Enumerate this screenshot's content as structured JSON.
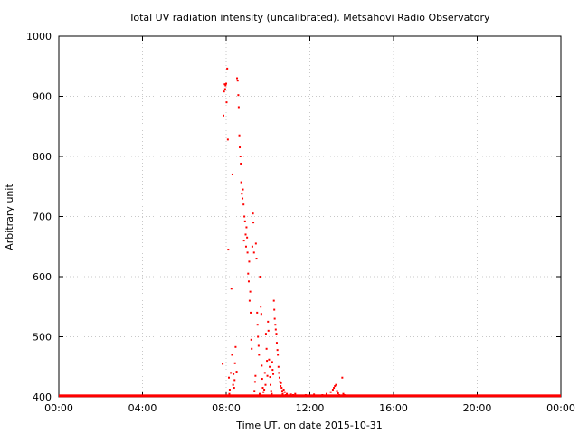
{
  "chart_data": {
    "type": "scatter",
    "title": "Total UV radiation intensity (uncalibrated). Metsähovi Radio Observatory",
    "xlabel": "Time UT, on date 2015-10-31",
    "ylabel": "Arbitrary unit",
    "xlim": [
      0,
      24
    ],
    "ylim": [
      400,
      1000
    ],
    "x_ticks": [
      {
        "value": 0,
        "label": "00:00"
      },
      {
        "value": 4,
        "label": "04:00"
      },
      {
        "value": 8,
        "label": "08:00"
      },
      {
        "value": 12,
        "label": "12:00"
      },
      {
        "value": 16,
        "label": "16:00"
      },
      {
        "value": 20,
        "label": "20:00"
      },
      {
        "value": 24,
        "label": "00:00"
      }
    ],
    "y_ticks": [
      {
        "value": 400,
        "label": "400"
      },
      {
        "value": 500,
        "label": "500"
      },
      {
        "value": 600,
        "label": "600"
      },
      {
        "value": 700,
        "label": "700"
      },
      {
        "value": 800,
        "label": "800"
      },
      {
        "value": 900,
        "label": "900"
      },
      {
        "value": 1000,
        "label": "1000"
      }
    ],
    "grid": true,
    "marker_color": "#ff0000",
    "baseline": {
      "value": 401,
      "x_from": 0,
      "x_to": 24
    },
    "points": [
      [
        7.83,
        455
      ],
      [
        7.87,
        868
      ],
      [
        7.9,
        908
      ],
      [
        7.93,
        920
      ],
      [
        7.95,
        912
      ],
      [
        7.97,
        918
      ],
      [
        8.0,
        921
      ],
      [
        8.02,
        890
      ],
      [
        8.05,
        946
      ],
      [
        8.08,
        828
      ],
      [
        8.1,
        645
      ],
      [
        8.13,
        432
      ],
      [
        8.15,
        405
      ],
      [
        8.17,
        412
      ],
      [
        8.2,
        402
      ],
      [
        8.22,
        440
      ],
      [
        8.25,
        580
      ],
      [
        8.28,
        470
      ],
      [
        8.3,
        770
      ],
      [
        8.33,
        420
      ],
      [
        8.35,
        438
      ],
      [
        8.38,
        415
      ],
      [
        8.4,
        428
      ],
      [
        8.42,
        456
      ],
      [
        8.45,
        483
      ],
      [
        8.5,
        442
      ],
      [
        8.52,
        930
      ],
      [
        8.55,
        926
      ],
      [
        8.58,
        902
      ],
      [
        8.6,
        882
      ],
      [
        8.63,
        835
      ],
      [
        8.65,
        815
      ],
      [
        8.68,
        800
      ],
      [
        8.7,
        788
      ],
      [
        8.72,
        757
      ],
      [
        8.75,
        738
      ],
      [
        8.78,
        730
      ],
      [
        8.8,
        745
      ],
      [
        8.83,
        720
      ],
      [
        8.85,
        660
      ],
      [
        8.87,
        700
      ],
      [
        8.9,
        692
      ],
      [
        8.93,
        670
      ],
      [
        8.95,
        650
      ],
      [
        8.97,
        682
      ],
      [
        9.0,
        665
      ],
      [
        9.02,
        640
      ],
      [
        9.05,
        605
      ],
      [
        9.08,
        592
      ],
      [
        9.1,
        625
      ],
      [
        9.12,
        560
      ],
      [
        9.15,
        575
      ],
      [
        9.17,
        540
      ],
      [
        9.2,
        495
      ],
      [
        9.22,
        480
      ],
      [
        9.25,
        650
      ],
      [
        9.28,
        705
      ],
      [
        9.3,
        690
      ],
      [
        9.33,
        640
      ],
      [
        9.35,
        410
      ],
      [
        9.38,
        425
      ],
      [
        9.4,
        435
      ],
      [
        9.42,
        655
      ],
      [
        9.45,
        630
      ],
      [
        9.48,
        540
      ],
      [
        9.5,
        520
      ],
      [
        9.52,
        500
      ],
      [
        9.55,
        485
      ],
      [
        9.57,
        470
      ],
      [
        9.6,
        405
      ],
      [
        9.62,
        600
      ],
      [
        9.65,
        550
      ],
      [
        9.68,
        538
      ],
      [
        9.7,
        452
      ],
      [
        9.72,
        430
      ],
      [
        9.75,
        415
      ],
      [
        9.78,
        408
      ],
      [
        9.8,
        402
      ],
      [
        9.82,
        412
      ],
      [
        9.85,
        440
      ],
      [
        9.88,
        420
      ],
      [
        9.9,
        505
      ],
      [
        9.93,
        480
      ],
      [
        9.95,
        460
      ],
      [
        9.97,
        435
      ],
      [
        10.0,
        525
      ],
      [
        10.02,
        510
      ],
      [
        10.05,
        462
      ],
      [
        10.08,
        450
      ],
      [
        10.1,
        433
      ],
      [
        10.12,
        420
      ],
      [
        10.15,
        410
      ],
      [
        10.18,
        405
      ],
      [
        10.2,
        458
      ],
      [
        10.22,
        445
      ],
      [
        10.25,
        438
      ],
      [
        10.28,
        560
      ],
      [
        10.3,
        545
      ],
      [
        10.32,
        530
      ],
      [
        10.35,
        520
      ],
      [
        10.37,
        512
      ],
      [
        10.4,
        505
      ],
      [
        10.42,
        490
      ],
      [
        10.45,
        478
      ],
      [
        10.47,
        470
      ],
      [
        10.5,
        450
      ],
      [
        10.52,
        440
      ],
      [
        10.55,
        432
      ],
      [
        10.57,
        425
      ],
      [
        10.6,
        418
      ],
      [
        10.62,
        423
      ],
      [
        10.65,
        415
      ],
      [
        10.68,
        410
      ],
      [
        10.7,
        405
      ],
      [
        10.72,
        402
      ],
      [
        10.75,
        412
      ],
      [
        10.8,
        408
      ],
      [
        10.85,
        403
      ],
      [
        10.9,
        405
      ],
      [
        11.0,
        402
      ],
      [
        11.1,
        404
      ],
      [
        11.2,
        403
      ],
      [
        11.3,
        405
      ],
      [
        11.5,
        402
      ],
      [
        11.8,
        403
      ],
      [
        12.0,
        402
      ],
      [
        12.2,
        404
      ],
      [
        12.4,
        402
      ],
      [
        12.6,
        403
      ],
      [
        12.8,
        405
      ],
      [
        13.0,
        408
      ],
      [
        13.1,
        412
      ],
      [
        13.15,
        415
      ],
      [
        13.2,
        418
      ],
      [
        13.25,
        420
      ],
      [
        13.3,
        410
      ],
      [
        13.35,
        406
      ],
      [
        13.4,
        403
      ],
      [
        13.5,
        402
      ],
      [
        13.55,
        432
      ],
      [
        13.6,
        405
      ],
      [
        13.65,
        403
      ]
    ]
  }
}
